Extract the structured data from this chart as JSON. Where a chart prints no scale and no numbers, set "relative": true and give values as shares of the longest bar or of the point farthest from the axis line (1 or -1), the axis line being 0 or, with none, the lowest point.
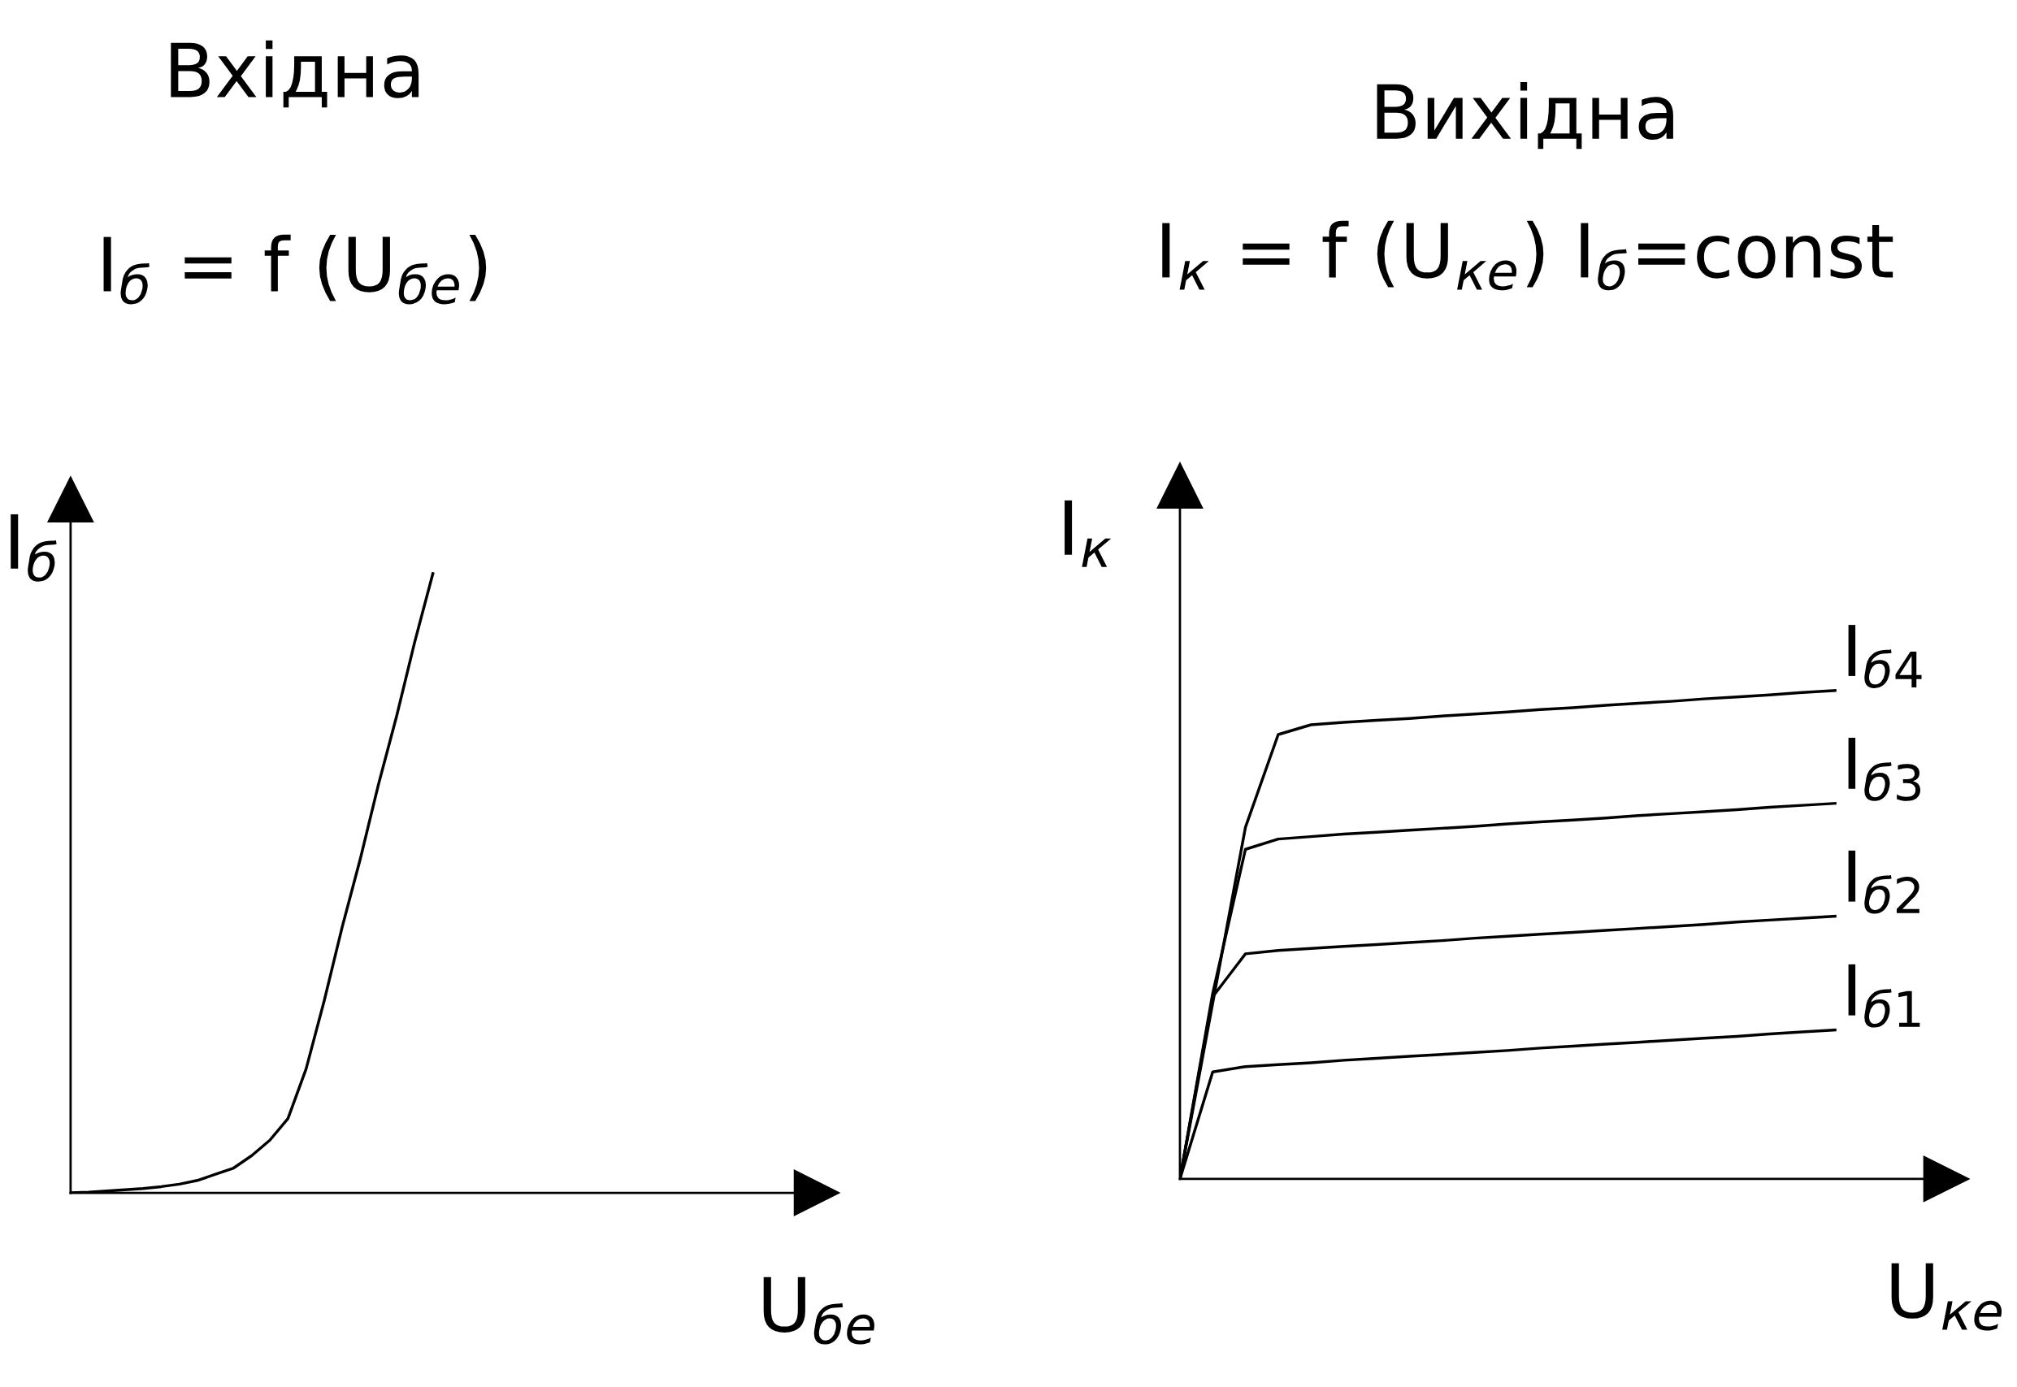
{
  "chart_data": [
    {
      "type": "line",
      "relative": true,
      "title": "Вхідна",
      "subtitle": "I$_{б}$ = f (U$_{бе}$)",
      "xlabel": "U$_{бе}$",
      "ylabel": "I$_{б}$",
      "tick_labels": false,
      "grid": false,
      "legend": false,
      "marker": "none",
      "line_style": "solid",
      "categories": [
        null,
        null,
        null,
        null,
        null,
        null,
        null,
        null,
        null,
        null,
        null,
        null,
        null,
        null,
        null,
        null,
        null,
        null,
        null,
        null,
        null
      ],
      "series": [
        {
          "color": "#000000",
          "values": [
            0,
            0.001,
            0.003,
            0.005,
            0.007,
            0.01,
            0.014,
            0.02,
            0.03,
            0.04,
            0.06,
            0.085,
            0.12,
            0.2,
            0.31,
            0.43,
            0.54,
            0.66,
            0.77,
            0.89,
            1.0
          ]
        }
      ]
    },
    {
      "type": "line",
      "relative": true,
      "title": "Вихідна",
      "subtitle": "I$_{к}$ = f (U$_{ке}$) I$_{б}$=const",
      "xlabel": "U$_{ке}$",
      "ylabel": "I$_{к}$",
      "tick_labels": false,
      "grid": false,
      "legend": false,
      "marker": "none",
      "line_style": "solid",
      "categories": [
        null,
        null,
        null,
        null,
        null,
        null,
        null,
        null,
        null,
        null,
        null,
        null,
        null,
        null,
        null,
        null,
        null,
        null,
        null,
        null,
        null
      ],
      "series": [
        {
          "name": "I$_{б4}$",
          "color": "#000000",
          "values": [
            0,
            0.36,
            0.72,
            0.91,
            0.93,
            0.935,
            0.939,
            0.943,
            0.948,
            0.952,
            0.956,
            0.961,
            0.965,
            0.97,
            0.974,
            0.978,
            0.983,
            0.987,
            0.991,
            0.996,
            1.0
          ]
        },
        {
          "name": "I$_{б3}$",
          "color": "#000000",
          "values": [
            0,
            0.38,
            0.675,
            0.696,
            0.701,
            0.706,
            0.71,
            0.714,
            0.718,
            0.722,
            0.727,
            0.731,
            0.735,
            0.739,
            0.744,
            0.748,
            0.752,
            0.756,
            0.761,
            0.765,
            0.769
          ]
        },
        {
          "name": "I$_{б2}$",
          "color": "#000000",
          "values": [
            0,
            0.373,
            0.461,
            0.468,
            0.472,
            0.476,
            0.48,
            0.484,
            0.488,
            0.493,
            0.497,
            0.501,
            0.505,
            0.509,
            0.513,
            0.517,
            0.521,
            0.526,
            0.53,
            0.534,
            0.538
          ]
        },
        {
          "name": "I$_{б1}$",
          "color": "#000000",
          "values": [
            0,
            0.219,
            0.23,
            0.234,
            0.238,
            0.243,
            0.247,
            0.251,
            0.255,
            0.259,
            0.263,
            0.268,
            0.272,
            0.276,
            0.28,
            0.284,
            0.288,
            0.292,
            0.297,
            0.301,
            0.305
          ]
        }
      ]
    }
  ]
}
